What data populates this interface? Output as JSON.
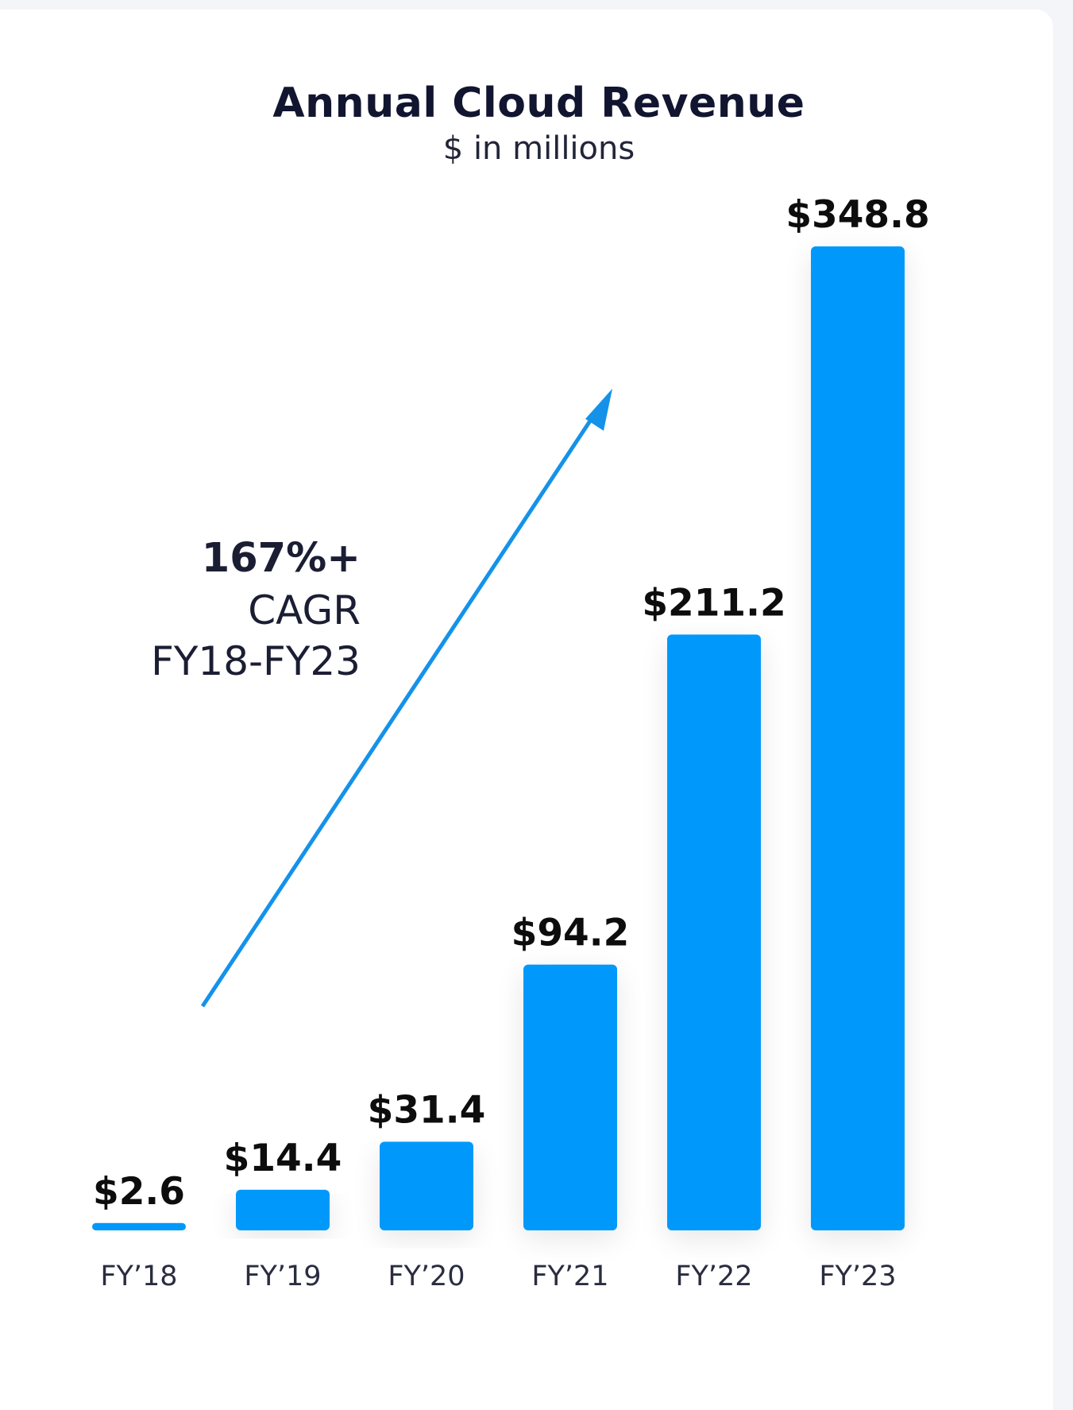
{
  "chart_data": {
    "type": "bar",
    "title": "Annual Cloud Revenue",
    "subtitle": "$ in millions",
    "categories": [
      "FY’18",
      "FY’19",
      "FY’20",
      "FY’21",
      "FY’22",
      "FY’23"
    ],
    "values": [
      2.6,
      14.4,
      31.4,
      94.2,
      211.2,
      348.8
    ],
    "value_labels": [
      "$2.6",
      "$14.4",
      "$31.4",
      "$94.2",
      "$211.2",
      "$348.8"
    ],
    "ylim": [
      0,
      348.8
    ],
    "grid": false,
    "legend": "none",
    "bar_color": "#0599fb",
    "annotation": {
      "value": "167%+",
      "label": "CAGR",
      "period": "FY18-FY23",
      "arrow_color": "#1492ea"
    }
  }
}
